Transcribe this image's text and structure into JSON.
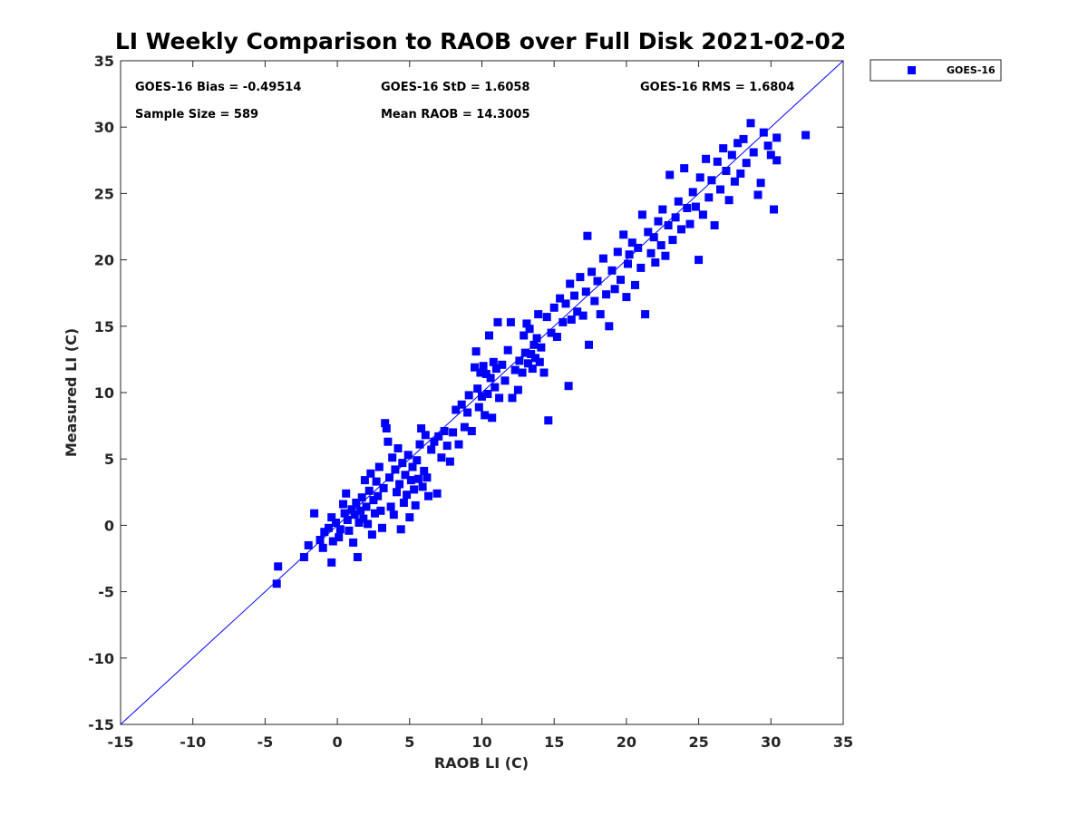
{
  "chart_data": {
    "type": "scatter",
    "title": "LI Weekly Comparison to RAOB over Full Disk 2021-02-02",
    "xlabel": "RAOB LI (C)",
    "ylabel": "Measured LI (C)",
    "xlim": [
      -15,
      35
    ],
    "ylim": [
      -15,
      35
    ],
    "xticks": [
      -15,
      -10,
      -5,
      0,
      5,
      10,
      15,
      20,
      25,
      30,
      35
    ],
    "yticks": [
      -15,
      -10,
      -5,
      0,
      5,
      10,
      15,
      20,
      25,
      30,
      35
    ],
    "grid": false,
    "legend_position": "outside-top-right",
    "reference_line": {
      "type": "one-to-one",
      "from": [
        -15,
        -15
      ],
      "to": [
        35,
        35
      ],
      "color": "#0000ff"
    },
    "stats": {
      "bias": "GOES-16 Bias = -0.49514",
      "std": "GOES-16 StD = 1.6058",
      "rms": "GOES-16 RMS = 1.6804",
      "sample_size": "Sample Size = 589",
      "mean_raob": "Mean RAOB = 14.3005"
    },
    "series": [
      {
        "name": "GOES-16",
        "color": "#0000ff",
        "marker": "square",
        "points": [
          [
            -4.1,
            -3.1
          ],
          [
            -4.2,
            -4.4
          ],
          [
            -2.3,
            -2.4
          ],
          [
            -2.0,
            -1.5
          ],
          [
            -1.6,
            0.9
          ],
          [
            -1.2,
            -1.1
          ],
          [
            -1.0,
            -1.7
          ],
          [
            -0.9,
            -0.5
          ],
          [
            -0.6,
            -0.2
          ],
          [
            -0.4,
            -2.8
          ],
          [
            -0.4,
            0.6
          ],
          [
            -0.3,
            -1.2
          ],
          [
            -0.1,
            0.2
          ],
          [
            0.1,
            -0.9
          ],
          [
            0.2,
            -0.3
          ],
          [
            0.4,
            1.6
          ],
          [
            0.5,
            0.9
          ],
          [
            0.6,
            2.4
          ],
          [
            0.7,
            0.4
          ],
          [
            0.8,
            -0.4
          ],
          [
            1.0,
            1.2
          ],
          [
            1.1,
            -1.3
          ],
          [
            1.2,
            0.8
          ],
          [
            1.3,
            1.7
          ],
          [
            1.4,
            -2.4
          ],
          [
            1.5,
            0.2
          ],
          [
            1.6,
            1.1
          ],
          [
            1.7,
            2.1
          ],
          [
            1.8,
            0.5
          ],
          [
            1.9,
            3.4
          ],
          [
            2.0,
            1.4
          ],
          [
            2.1,
            0.1
          ],
          [
            2.2,
            2.6
          ],
          [
            2.3,
            3.9
          ],
          [
            2.4,
            -0.7
          ],
          [
            2.5,
            1.9
          ],
          [
            2.6,
            0.9
          ],
          [
            2.7,
            3.3
          ],
          [
            2.8,
            2.2
          ],
          [
            2.9,
            4.4
          ],
          [
            3.0,
            1.1
          ],
          [
            3.1,
            -0.2
          ],
          [
            3.2,
            2.8
          ],
          [
            3.3,
            7.7
          ],
          [
            3.4,
            7.3
          ],
          [
            3.5,
            6.3
          ],
          [
            3.6,
            3.6
          ],
          [
            3.7,
            1.4
          ],
          [
            3.8,
            5.1
          ],
          [
            3.9,
            0.8
          ],
          [
            4.0,
            4.2
          ],
          [
            4.1,
            2.5
          ],
          [
            4.2,
            5.8
          ],
          [
            4.3,
            3.1
          ],
          [
            4.4,
            -0.3
          ],
          [
            4.5,
            4.7
          ],
          [
            4.6,
            1.7
          ],
          [
            4.7,
            3.8
          ],
          [
            4.8,
            2.3
          ],
          [
            4.9,
            5.3
          ],
          [
            5.0,
            0.6
          ],
          [
            5.1,
            3.4
          ],
          [
            5.2,
            4.4
          ],
          [
            5.3,
            2.7
          ],
          [
            5.4,
            1.5
          ],
          [
            5.5,
            4.9
          ],
          [
            5.6,
            3.5
          ],
          [
            5.7,
            6.1
          ],
          [
            5.8,
            7.3
          ],
          [
            5.9,
            2.9
          ],
          [
            6.0,
            4.1
          ],
          [
            6.1,
            6.8
          ],
          [
            6.2,
            3.6
          ],
          [
            6.3,
            2.2
          ],
          [
            6.5,
            5.7
          ],
          [
            6.7,
            6.3
          ],
          [
            6.9,
            2.4
          ],
          [
            7.0,
            6.7
          ],
          [
            7.2,
            5.1
          ],
          [
            7.4,
            7.1
          ],
          [
            7.6,
            6.0
          ],
          [
            7.8,
            4.8
          ],
          [
            8.0,
            7.0
          ],
          [
            8.2,
            8.7
          ],
          [
            8.4,
            6.1
          ],
          [
            8.6,
            9.1
          ],
          [
            8.8,
            7.4
          ],
          [
            9.0,
            8.5
          ],
          [
            9.1,
            9.8
          ],
          [
            9.3,
            7.1
          ],
          [
            9.5,
            11.9
          ],
          [
            9.6,
            13.1
          ],
          [
            9.7,
            10.3
          ],
          [
            9.8,
            8.9
          ],
          [
            9.9,
            11.5
          ],
          [
            10.0,
            9.7
          ],
          [
            10.1,
            12.0
          ],
          [
            10.2,
            8.3
          ],
          [
            10.3,
            11.4
          ],
          [
            10.4,
            9.9
          ],
          [
            10.5,
            14.3
          ],
          [
            10.6,
            11.1
          ],
          [
            10.7,
            8.1
          ],
          [
            10.8,
            12.3
          ],
          [
            10.9,
            10.4
          ],
          [
            11.0,
            11.8
          ],
          [
            11.1,
            15.3
          ],
          [
            11.2,
            9.6
          ],
          [
            11.4,
            12.1
          ],
          [
            11.6,
            10.9
          ],
          [
            11.8,
            13.2
          ],
          [
            12.0,
            15.3
          ],
          [
            12.1,
            9.6
          ],
          [
            12.3,
            11.7
          ],
          [
            12.5,
            10.2
          ],
          [
            12.6,
            12.4
          ],
          [
            12.8,
            11.5
          ],
          [
            12.9,
            14.3
          ],
          [
            13.0,
            13.0
          ],
          [
            13.1,
            15.2
          ],
          [
            13.2,
            12.2
          ],
          [
            13.3,
            14.8
          ],
          [
            13.4,
            12.9
          ],
          [
            13.5,
            11.8
          ],
          [
            13.6,
            13.6
          ],
          [
            13.7,
            12.6
          ],
          [
            13.8,
            14.1
          ],
          [
            13.9,
            15.9
          ],
          [
            14.0,
            12.3
          ],
          [
            14.1,
            13.4
          ],
          [
            14.3,
            11.5
          ],
          [
            14.5,
            15.7
          ],
          [
            14.6,
            7.9
          ],
          [
            14.8,
            14.5
          ],
          [
            15.0,
            16.4
          ],
          [
            15.2,
            14.2
          ],
          [
            15.4,
            17.1
          ],
          [
            15.6,
            15.3
          ],
          [
            15.8,
            16.7
          ],
          [
            16.0,
            10.5
          ],
          [
            16.1,
            18.2
          ],
          [
            16.2,
            15.5
          ],
          [
            16.4,
            17.3
          ],
          [
            16.6,
            16.1
          ],
          [
            16.8,
            18.7
          ],
          [
            17.0,
            15.8
          ],
          [
            17.2,
            17.6
          ],
          [
            17.3,
            21.8
          ],
          [
            17.4,
            13.6
          ],
          [
            17.6,
            19.1
          ],
          [
            17.8,
            16.9
          ],
          [
            18.0,
            18.4
          ],
          [
            18.2,
            15.9
          ],
          [
            18.4,
            20.1
          ],
          [
            18.6,
            17.4
          ],
          [
            18.8,
            15.0
          ],
          [
            19.0,
            19.2
          ],
          [
            19.2,
            17.8
          ],
          [
            19.4,
            20.6
          ],
          [
            19.6,
            18.5
          ],
          [
            19.8,
            21.9
          ],
          [
            20.0,
            17.2
          ],
          [
            20.1,
            19.7
          ],
          [
            20.2,
            20.4
          ],
          [
            20.4,
            21.3
          ],
          [
            20.6,
            18.1
          ],
          [
            20.8,
            20.9
          ],
          [
            21.0,
            19.4
          ],
          [
            21.1,
            23.4
          ],
          [
            21.3,
            15.9
          ],
          [
            21.5,
            22.1
          ],
          [
            21.7,
            20.5
          ],
          [
            21.9,
            21.7
          ],
          [
            22.0,
            19.8
          ],
          [
            22.2,
            22.9
          ],
          [
            22.4,
            21.1
          ],
          [
            22.5,
            23.8
          ],
          [
            22.7,
            20.3
          ],
          [
            22.9,
            22.6
          ],
          [
            23.0,
            26.4
          ],
          [
            23.2,
            21.5
          ],
          [
            23.4,
            23.2
          ],
          [
            23.6,
            24.4
          ],
          [
            23.8,
            22.3
          ],
          [
            24.0,
            26.9
          ],
          [
            24.2,
            23.9
          ],
          [
            24.4,
            22.7
          ],
          [
            24.6,
            25.1
          ],
          [
            24.8,
            24.0
          ],
          [
            25.0,
            20.0
          ],
          [
            25.1,
            26.2
          ],
          [
            25.3,
            23.4
          ],
          [
            25.5,
            27.6
          ],
          [
            25.7,
            24.7
          ],
          [
            25.9,
            26.0
          ],
          [
            26.1,
            22.6
          ],
          [
            26.3,
            27.4
          ],
          [
            26.5,
            25.3
          ],
          [
            26.7,
            28.4
          ],
          [
            26.9,
            26.7
          ],
          [
            27.1,
            24.5
          ],
          [
            27.3,
            27.9
          ],
          [
            27.5,
            25.9
          ],
          [
            27.7,
            28.8
          ],
          [
            27.9,
            26.5
          ],
          [
            28.1,
            29.1
          ],
          [
            28.3,
            27.3
          ],
          [
            28.6,
            30.3
          ],
          [
            28.8,
            28.1
          ],
          [
            29.1,
            24.9
          ],
          [
            29.3,
            25.8
          ],
          [
            29.5,
            29.6
          ],
          [
            29.8,
            28.6
          ],
          [
            30.0,
            27.9
          ],
          [
            30.2,
            23.8
          ],
          [
            30.4,
            27.5
          ],
          [
            30.4,
            29.2
          ],
          [
            32.4,
            29.4
          ]
        ]
      }
    ]
  }
}
